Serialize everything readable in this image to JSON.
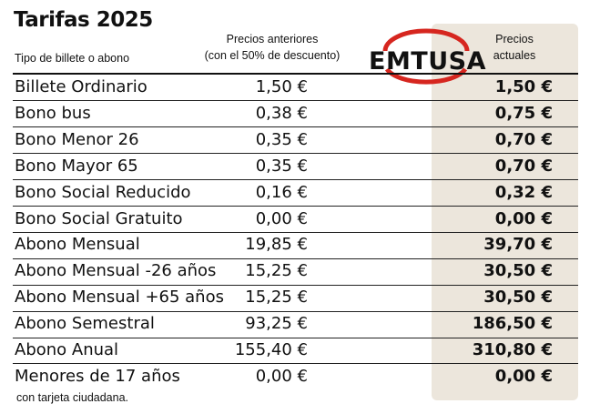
{
  "title": "Tarifas 2025",
  "subtitle": "Tipo de billete o abono",
  "header_prev_line1": "Precios anteriores",
  "header_prev_line2": "(con el 50% de descuento)",
  "header_curr_line1": "Precios",
  "header_curr_line2": "actuales",
  "logo_text": "EMTUSA",
  "logo_icon": "emtusa-logo",
  "accent_color": "#d6261f",
  "highlight_column_color": "#ece6dc",
  "rows": [
    {
      "name": "Billete Ordinario",
      "prev": "1,50 €",
      "curr": "1,50 €"
    },
    {
      "name": "Bono bus",
      "prev": "0,38 €",
      "curr": "0,75 €"
    },
    {
      "name": "Bono Menor 26",
      "prev": "0,35 €",
      "curr": "0,70 €"
    },
    {
      "name": "Bono Mayor 65",
      "prev": "0,35 €",
      "curr": "0,70 €"
    },
    {
      "name": "Bono Social Reducido",
      "prev": "0,16 €",
      "curr": "0,32 €"
    },
    {
      "name": "Bono Social Gratuito",
      "prev": "0,00 €",
      "curr": "0,00 €"
    },
    {
      "name": "Abono Mensual",
      "prev": "19,85 €",
      "curr": "39,70 €"
    },
    {
      "name": "Abono Mensual -26 años",
      "prev": "15,25 €",
      "curr": "30,50 €"
    },
    {
      "name": "Abono Mensual +65 años",
      "prev": "15,25 €",
      "curr": "30,50 €"
    },
    {
      "name": "Abono Semestral",
      "prev": "93,25 €",
      "curr": "186,50 €"
    },
    {
      "name": "Abono Anual",
      "prev": "155,40 €",
      "curr": "310,80 €"
    },
    {
      "name": "Menores de 17 años",
      "prev": "0,00 €",
      "curr": "0,00 €"
    }
  ],
  "footnote": "con tarjeta ciudadana."
}
